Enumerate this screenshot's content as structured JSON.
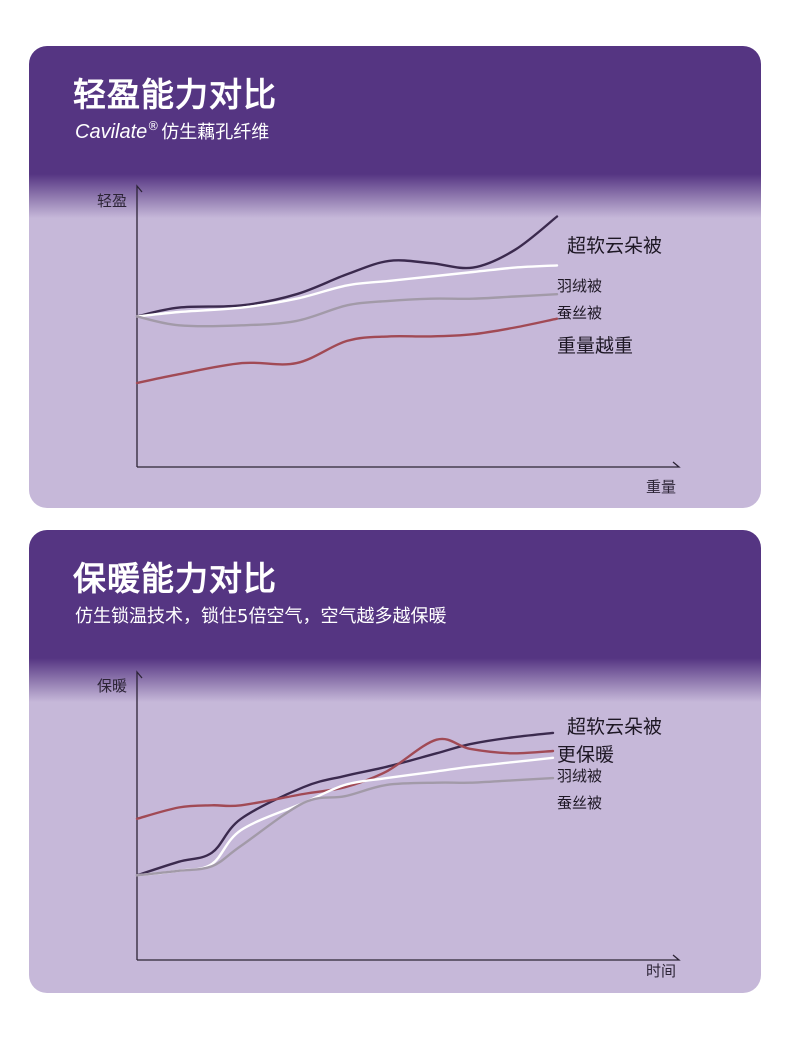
{
  "colors": {
    "panel_header": "#553582",
    "panel_body": "#c6b8d9",
    "axis": "#2c2436",
    "series_dark": "#3b2a4e",
    "series_white": "#ffffff",
    "series_gray": "#a29aa8",
    "series_red": "#a14a55"
  },
  "chart_data": [
    {
      "type": "line",
      "title": "轻盈能力对比",
      "subtitle": {
        "brand": "Cavilate",
        "mark": "®",
        "text": "仿生藕孔纤维"
      },
      "ylabel": "轻盈",
      "xlabel": "重量",
      "xlim": [
        0,
        100
      ],
      "ylim": [
        0,
        100
      ],
      "grid": false,
      "legend": "inline-right",
      "x": [
        0,
        10,
        25,
        38,
        50,
        60,
        70,
        80,
        90,
        100
      ],
      "series": [
        {
          "name": "超软云朵被",
          "color": "#3b2a4e",
          "label_size": 19,
          "values": [
            48,
            52,
            53,
            58,
            67,
            73,
            72,
            70,
            78,
            93
          ]
        },
        {
          "name": "羽绒被",
          "color": "#ffffff",
          "label_size": 15,
          "values": [
            48,
            50,
            52,
            56,
            62,
            64,
            66,
            68,
            70,
            71
          ]
        },
        {
          "name": "蚕丝被",
          "color": "#a29aa8",
          "label_size": 15,
          "values": [
            48,
            44,
            44,
            46,
            53,
            55,
            56,
            56,
            57,
            58
          ]
        },
        {
          "name": "重量越重",
          "color": "#a14a55",
          "label_size": 19,
          "values": [
            18,
            22,
            27,
            27,
            37,
            39,
            39,
            40,
            43,
            47
          ]
        }
      ]
    },
    {
      "type": "line",
      "title": "保暖能力对比",
      "subtitle": {
        "brand": "",
        "mark": "",
        "text": "仿生锁温技术，锁住5倍空气，空气越多越保暖"
      },
      "ylabel": "保暖",
      "xlabel": "时间",
      "xlim": [
        0,
        100
      ],
      "ylim": [
        0,
        100
      ],
      "grid": false,
      "legend": "inline-right",
      "x": [
        0,
        10,
        18,
        25,
        40,
        50,
        60,
        72,
        80,
        90,
        100
      ],
      "series": [
        {
          "name": "超软云朵被",
          "color": "#3b2a4e",
          "label_size": 19,
          "values": [
            18,
            24,
            28,
            43,
            57,
            62,
            66,
            72,
            76,
            79,
            81
          ]
        },
        {
          "name": "更保暖",
          "color": "#a14a55",
          "label_size": 19,
          "values": [
            43,
            48,
            49,
            49,
            54,
            57,
            64,
            78,
            74,
            72,
            73
          ]
        },
        {
          "name": "羽绒被",
          "color": "#ffffff",
          "label_size": 15,
          "values": [
            18,
            20,
            23,
            38,
            50,
            58,
            61,
            64,
            66,
            68,
            70
          ]
        },
        {
          "name": "蚕丝被",
          "color": "#a29aa8",
          "label_size": 15,
          "values": [
            18,
            20,
            22,
            31,
            50,
            53,
            58,
            59,
            59,
            60,
            61
          ]
        }
      ]
    }
  ]
}
